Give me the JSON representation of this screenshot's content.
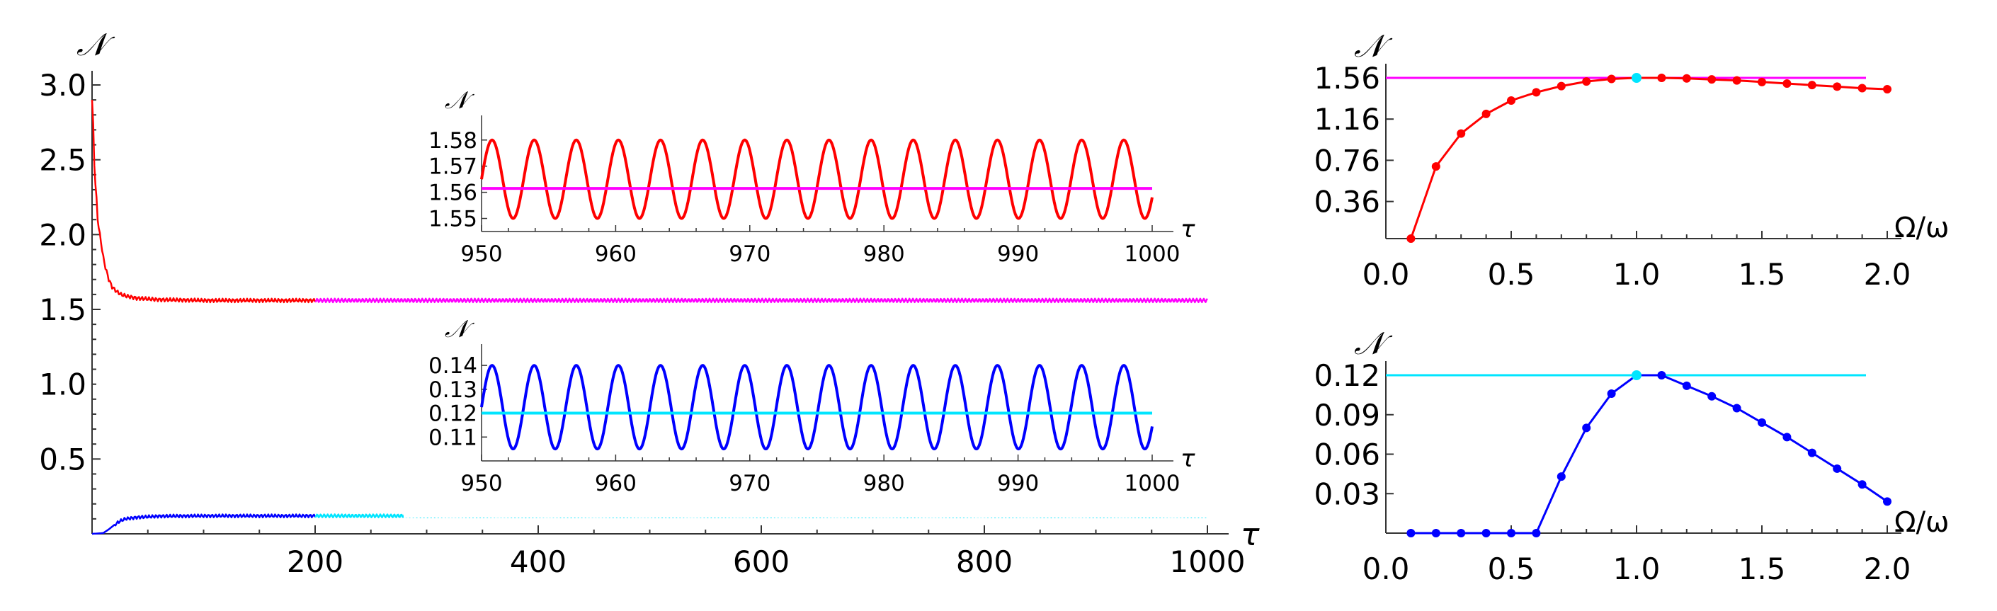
{
  "chart_data": [
    {
      "id": "main",
      "type": "line",
      "title": "",
      "xlabel": "τ",
      "ylabel": "𝒩",
      "xlim": [
        0,
        1000
      ],
      "ylim": [
        0,
        3.0
      ],
      "xticks": [
        "200",
        "400",
        "600",
        "800",
        "1000"
      ],
      "yticks": [
        "0.5",
        "1.0",
        "1.5",
        "2.0",
        "2.5",
        "3.0"
      ],
      "colors": {
        "upper_transient": "#ff0000",
        "upper_steady": "#ff00ff",
        "lower_transient": "#0000ff",
        "lower_steady": "#00e5ff"
      },
      "series": [
        {
          "x": [
            0,
            2,
            4,
            6,
            8,
            10,
            12,
            15,
            18,
            22,
            26,
            30,
            40,
            60,
            100,
            150,
            200
          ],
          "values": [
            2.9,
            2.5,
            2.2,
            2.05,
            1.95,
            1.85,
            1.78,
            1.7,
            1.65,
            1.62,
            1.6,
            1.59,
            1.575,
            1.565,
            1.56,
            1.56,
            1.56
          ]
        },
        {
          "x": [
            200,
            1000
          ],
          "values": [
            1.56,
            1.56
          ]
        },
        {
          "x": [
            0,
            10,
            15,
            20,
            25,
            30,
            40,
            60,
            100,
            150,
            200
          ],
          "values": [
            0.0,
            0.005,
            0.03,
            0.06,
            0.085,
            0.1,
            0.11,
            0.118,
            0.12,
            0.12,
            0.12
          ]
        },
        {
          "x": [
            200,
            1000
          ],
          "values": [
            0.12,
            0.12
          ]
        }
      ]
    },
    {
      "id": "inset_top",
      "type": "line",
      "title": "",
      "xlabel": "τ",
      "ylabel": "𝒩",
      "xlim": [
        950,
        1000
      ],
      "ylim": [
        1.545,
        1.584
      ],
      "xticks": [
        "950",
        "960",
        "970",
        "980",
        "990",
        "1000"
      ],
      "yticks": [
        "1.55",
        "1.56",
        "1.57",
        "1.58"
      ],
      "oscillation": {
        "mean": 1.565,
        "amplitude": 0.015,
        "period": 3.14
      },
      "mean_line": 1.5615,
      "colors": {
        "curve": "#ff0000",
        "mean": "#ff00ff"
      }
    },
    {
      "id": "inset_bottom",
      "type": "line",
      "title": "",
      "xlabel": "τ",
      "ylabel": "𝒩",
      "xlim": [
        950,
        1000
      ],
      "ylim": [
        0.1,
        0.143
      ],
      "xticks": [
        "950",
        "960",
        "970",
        "980",
        "990",
        "1000"
      ],
      "yticks": [
        "0.11",
        "0.12",
        "0.13",
        "0.14"
      ],
      "oscillation": {
        "mean": 0.1225,
        "amplitude": 0.0175,
        "period": 3.14
      },
      "mean_line": 0.12,
      "colors": {
        "curve": "#0000ff",
        "mean": "#00e5ff"
      }
    },
    {
      "id": "right_top",
      "type": "line",
      "title": "",
      "xlabel": "Ω/ω",
      "ylabel": "𝒩",
      "xlim": [
        0,
        2.0
      ],
      "ylim": [
        0,
        1.56
      ],
      "xticks": [
        "0.0",
        "0.5",
        "1.0",
        "1.5",
        "2.0"
      ],
      "yticks": [
        "0.36",
        "0.76",
        "1.16",
        "1.56"
      ],
      "x": [
        0.1,
        0.2,
        0.3,
        0.4,
        0.5,
        0.6,
        0.7,
        0.8,
        0.9,
        1.0,
        1.1,
        1.2,
        1.3,
        1.4,
        1.5,
        1.6,
        1.7,
        1.8,
        1.9,
        2.0
      ],
      "values": [
        0.0,
        0.7,
        1.02,
        1.21,
        1.34,
        1.42,
        1.48,
        1.525,
        1.55,
        1.56,
        1.56,
        1.555,
        1.545,
        1.535,
        1.52,
        1.505,
        1.49,
        1.475,
        1.46,
        1.45
      ],
      "reference_line": 1.56,
      "highlight_x": 1.0,
      "colors": {
        "curve": "#ff0000",
        "reference": "#ff00ff",
        "highlight": "#00e5ff"
      }
    },
    {
      "id": "right_bottom",
      "type": "line",
      "title": "",
      "xlabel": "Ω/ω",
      "ylabel": "𝒩",
      "xlim": [
        0,
        2.0
      ],
      "ylim": [
        0,
        0.12
      ],
      "xticks": [
        "0.0",
        "0.5",
        "1.0",
        "1.5",
        "2.0"
      ],
      "yticks": [
        "0.03",
        "0.06",
        "0.09",
        "0.12"
      ],
      "x": [
        0.1,
        0.2,
        0.3,
        0.4,
        0.5,
        0.6,
        0.7,
        0.8,
        0.9,
        1.0,
        1.1,
        1.2,
        1.3,
        1.4,
        1.5,
        1.6,
        1.7,
        1.8,
        1.9,
        2.0
      ],
      "values": [
        0,
        0,
        0,
        0,
        0,
        0,
        0.043,
        0.08,
        0.106,
        0.12,
        0.12,
        0.112,
        0.104,
        0.095,
        0.084,
        0.073,
        0.061,
        0.049,
        0.037,
        0.024
      ],
      "reference_line": 0.12,
      "highlight_x": 1.0,
      "colors": {
        "curve": "#0000ff",
        "reference": "#00e5ff",
        "highlight": "#00e5ff"
      }
    }
  ]
}
